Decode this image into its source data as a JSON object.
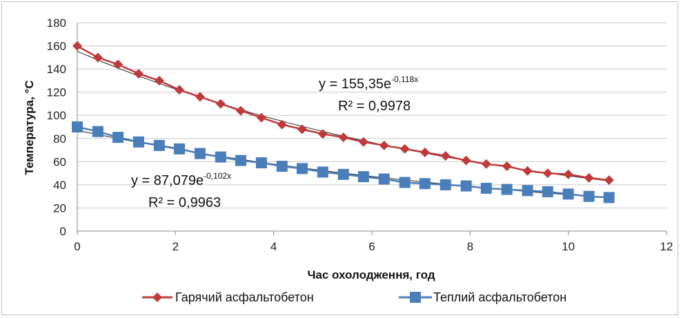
{
  "chart_data": {
    "type": "scatter",
    "xlabel": "Час охолодження, год",
    "ylabel": "Температура, °С",
    "xlim": [
      0,
      12
    ],
    "ylim": [
      0,
      180
    ],
    "x_ticks": [
      0,
      2,
      4,
      6,
      8,
      10,
      12
    ],
    "y_ticks": [
      0,
      20,
      40,
      60,
      80,
      100,
      120,
      140,
      160,
      180
    ],
    "grid": "horizontal",
    "legend_position": "bottom",
    "series": [
      {
        "name": "Гарячий асфальтобетон",
        "color": "#c0393b",
        "marker": "diamond",
        "x": [
          0,
          0.42,
          0.83,
          1.25,
          1.67,
          2.08,
          2.5,
          2.92,
          3.33,
          3.75,
          4.17,
          4.58,
          5.0,
          5.42,
          5.83,
          6.25,
          6.67,
          7.08,
          7.5,
          7.92,
          8.33,
          8.75,
          9.17,
          9.58,
          10.0,
          10.42,
          10.83
        ],
        "values": [
          160,
          150,
          144,
          136,
          130,
          122,
          116,
          110,
          104,
          98,
          92,
          88,
          84,
          81,
          77,
          74,
          71,
          68,
          65,
          61,
          58,
          56,
          52,
          50,
          49,
          46,
          44
        ],
        "trendline": {
          "a": 155.35,
          "b": -0.118,
          "equation": "y = 155,35e",
          "exponent": "-0,118x",
          "r2": "R² = 0,9978"
        }
      },
      {
        "name": "Теплий асфальтобетон",
        "color": "#4a7ebb",
        "marker": "square",
        "x": [
          0,
          0.42,
          0.83,
          1.25,
          1.67,
          2.08,
          2.5,
          2.92,
          3.33,
          3.75,
          4.17,
          4.58,
          5.0,
          5.42,
          5.83,
          6.25,
          6.67,
          7.08,
          7.5,
          7.92,
          8.33,
          8.75,
          9.17,
          9.58,
          10.0,
          10.42,
          10.83
        ],
        "values": [
          90,
          86,
          81,
          77,
          74,
          71,
          67,
          64,
          61,
          59,
          56,
          54,
          51,
          49,
          47,
          45,
          42,
          41,
          40,
          39,
          37,
          36,
          35,
          34,
          32,
          30,
          29
        ],
        "trendline": {
          "a": 87.079,
          "b": -0.102,
          "equation": "y = 87,079e",
          "exponent": "-0,102x",
          "r2": "R² = 0,9963"
        }
      }
    ]
  }
}
